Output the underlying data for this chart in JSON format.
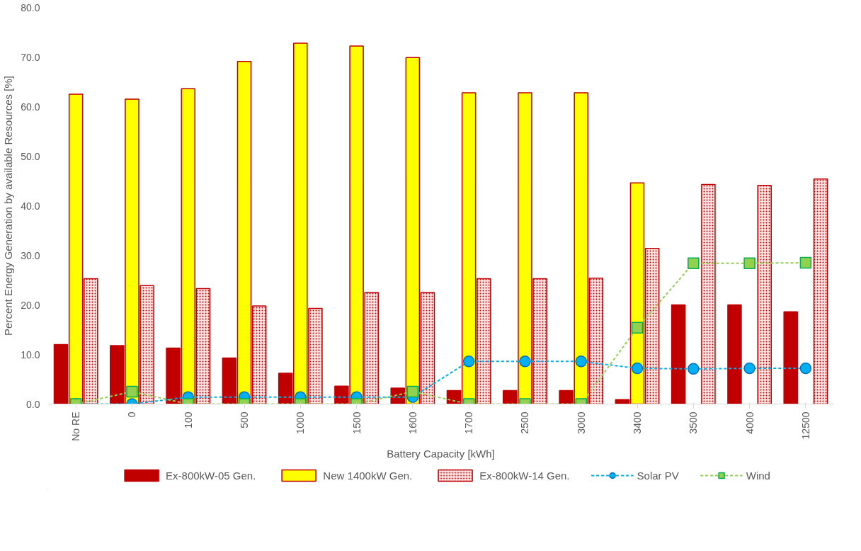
{
  "chart_data": {
    "type": "bar",
    "xlabel": "Battery Capacity [kWh]",
    "ylabel": "Percent Energy Generation by available Resources [%]",
    "categories": [
      "No RE",
      "0",
      "100",
      "500",
      "1000",
      "1500",
      "1600",
      "1700",
      "2500",
      "3000",
      "3400",
      "3500",
      "4000",
      "12500"
    ],
    "ylim": [
      0,
      80
    ],
    "yticks": [
      {
        "value": 0,
        "label": "0.0"
      },
      {
        "value": 10,
        "label": "10.0"
      },
      {
        "value": 20,
        "label": "20.0"
      },
      {
        "value": 30,
        "label": "30.0"
      },
      {
        "value": 40,
        "label": "40.0"
      },
      {
        "value": 50,
        "label": "50.0"
      },
      {
        "value": 60,
        "label": "60.0"
      },
      {
        "value": 70,
        "label": "70.0"
      },
      {
        "value": 80,
        "label": "80.0"
      }
    ],
    "grid": false,
    "legend": "bottom",
    "series": [
      {
        "name": "Ex-800kW-05 Gen.",
        "color": "#c00000",
        "values": [
          12.0,
          11.8,
          11.3,
          9.3,
          6.2,
          3.6,
          3.2,
          2.7,
          2.7,
          2.7,
          0.9,
          20.0,
          20.0,
          18.6
        ]
      },
      {
        "name": "New 1400kW Gen.",
        "color": "#ffff00",
        "values": [
          62.5,
          61.5,
          63.6,
          69.1,
          72.8,
          72.2,
          69.9,
          62.8,
          62.8,
          62.8,
          44.6,
          null,
          null,
          null
        ]
      },
      {
        "name": "Ex-800kW-14 Gen.",
        "color": "#fbe4e4",
        "values": [
          25.3,
          23.9,
          23.3,
          19.8,
          19.3,
          22.5,
          22.5,
          25.3,
          25.3,
          25.4,
          31.4,
          44.3,
          44.1,
          45.4
        ]
      },
      {
        "name": "Solar PV",
        "type": "line",
        "color": "#00b0f0",
        "marker": "circle",
        "line_style": "dashed",
        "values": [
          0,
          0,
          1.4,
          1.4,
          1.4,
          1.4,
          1.4,
          8.6,
          8.6,
          8.6,
          7.2,
          7.1,
          7.2,
          7.2
        ]
      },
      {
        "name": "Wind",
        "type": "line",
        "color": "#92d050",
        "marker": "square",
        "line_style": "dashed",
        "values": [
          0,
          2.5,
          0,
          0,
          0,
          0,
          2.5,
          0,
          0,
          0,
          15.4,
          28.4,
          28.4,
          28.5
        ]
      }
    ]
  }
}
